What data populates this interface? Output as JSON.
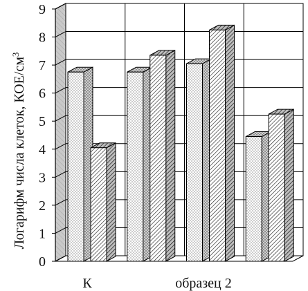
{
  "chart_data": {
    "type": "bar",
    "style": "3d-clustered",
    "title": "",
    "xlabel": "",
    "ylabel": "Логарифм числа клеток, КОЕ/см",
    "ylabel_superscript": "3",
    "ylim": [
      0,
      9
    ],
    "yticks": [
      "0",
      "1",
      "2",
      "3",
      "4",
      "5",
      "6",
      "7",
      "8",
      "9"
    ],
    "grid": true,
    "groups": [
      {
        "bars": [
          6.75,
          4.05
        ]
      },
      {
        "bars": [
          6.75,
          7.35
        ]
      },
      {
        "bars": [
          7.05,
          8.25
        ]
      },
      {
        "bars": [
          4.45,
          5.25
        ]
      }
    ],
    "category_labels": [
      "К",
      "образец 2"
    ],
    "series_patterns": [
      "dotted",
      "hatched"
    ],
    "colors": {
      "wall": "#c8c8c8",
      "grid": "#000000",
      "bar_fill": "#ffffff"
    }
  }
}
